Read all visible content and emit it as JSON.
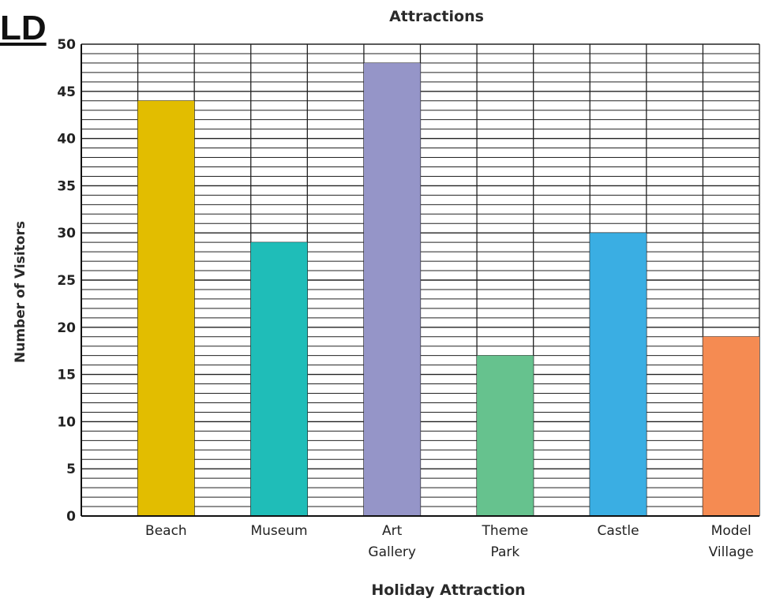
{
  "fragment_text": "LD",
  "chart_data": {
    "type": "bar",
    "title": "Attractions",
    "xlabel": "Holiday Attraction",
    "ylabel": "Number of Visitors",
    "categories": [
      "Beach",
      "Museum",
      "Art Gallery",
      "Theme Park",
      "Castle",
      "Model Village"
    ],
    "category_lines": [
      [
        "Beach"
      ],
      [
        "Museum"
      ],
      [
        "Art",
        "Gallery"
      ],
      [
        "Theme",
        "Park"
      ],
      [
        "Castle"
      ],
      [
        "Model",
        "Village"
      ]
    ],
    "values": [
      44,
      29,
      48,
      17,
      30,
      19
    ],
    "colors": [
      "#e2bd00",
      "#1fbdb8",
      "#9595c8",
      "#66c28e",
      "#3aaee3",
      "#f58b52"
    ],
    "ylim": [
      0,
      50
    ],
    "yticks": [
      "0",
      "5",
      "10",
      "15",
      "20",
      "25",
      "30",
      "35",
      "40",
      "45",
      "50"
    ],
    "grid": true,
    "legend": "none"
  }
}
